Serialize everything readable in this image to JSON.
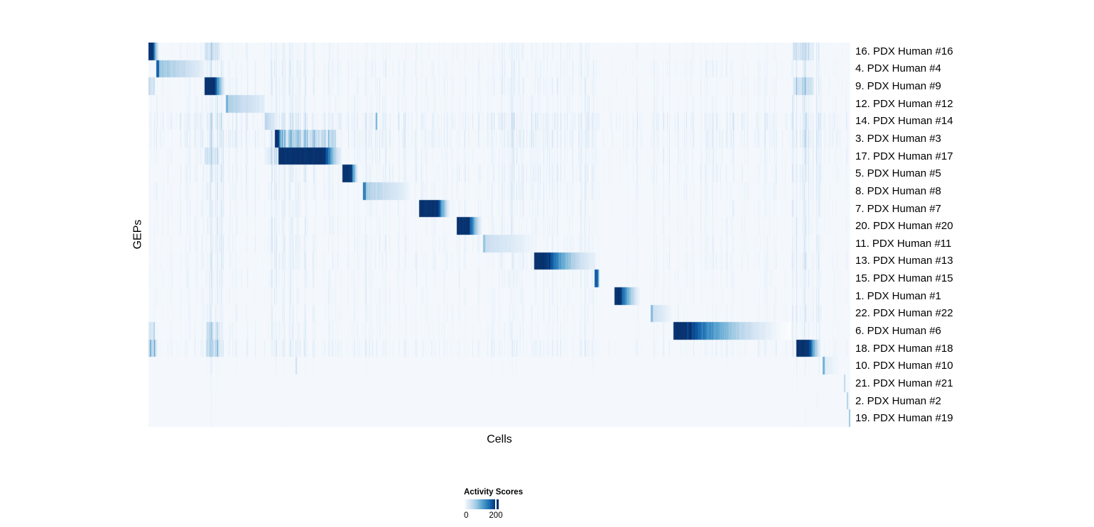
{
  "figure": {
    "xlabel": "Cells",
    "ylabel": "GEPs"
  },
  "legend": {
    "title": "Activity Scores",
    "tick_labels": [
      "0",
      "200"
    ],
    "min": 0,
    "max_tick": 200
  },
  "colors": {
    "page_background": "#ffffff",
    "plot_base": "#f4f8fd",
    "text": "#000000",
    "colormap_stops": [
      [
        0.0,
        "#ffffff"
      ],
      [
        0.13,
        "#deebf7"
      ],
      [
        0.26,
        "#c6dbef"
      ],
      [
        0.39,
        "#9ecae1"
      ],
      [
        0.52,
        "#6baed6"
      ],
      [
        0.65,
        "#4292c6"
      ],
      [
        0.78,
        "#2171b5"
      ],
      [
        0.9,
        "#08519c"
      ],
      [
        1.0,
        "#08306b"
      ]
    ]
  },
  "chart_data": {
    "type": "heatmap",
    "title": "",
    "xlabel": "Cells",
    "ylabel": "GEPs",
    "legend_title": "Activity Scores",
    "colorbar": {
      "min": 0,
      "tick": 200,
      "note": "white-to-dark-blue, saturates above 200"
    },
    "n_rows": 22,
    "rows": [
      {
        "label": "16. PDX Human #16",
        "noise": 0.9,
        "block": {
          "s": 0.0,
          "solid": 0.0055,
          "e": 0.0145,
          "peak": 1.0,
          "tail": 0.04,
          "pow": 1.2
        },
        "bands": [
          [
            0.08,
            0.101,
            0.26
          ],
          [
            0.92,
            0.948,
            0.28
          ]
        ],
        "marks": []
      },
      {
        "label": "4. PDX Human #4",
        "noise": 1.1,
        "block": {
          "s": 0.0115,
          "e": 0.0795,
          "peak": 0.42,
          "tail": 0.07,
          "pow": 0.85,
          "edge": 0.82,
          "edgew": 0.003
        },
        "bands": [],
        "marks": []
      },
      {
        "label": "9. PDX Human #9",
        "noise": 1.1,
        "block": {
          "s": 0.08,
          "solid": 0.094,
          "e": 0.109,
          "peak": 1.0,
          "tail": 0.06,
          "pow": 1.3
        },
        "bands": [
          [
            0.0,
            0.0085,
            0.3
          ],
          [
            0.92,
            0.948,
            0.32
          ]
        ],
        "marks": []
      },
      {
        "label": "12. PDX Human #12",
        "noise": 1.0,
        "block": {
          "s": 0.1105,
          "e": 0.165,
          "peak": 0.34,
          "tail": 0.1,
          "pow": 0.85,
          "edge": 0.5,
          "edgew": 0.002
        },
        "bands": [],
        "marks": []
      },
      {
        "label": "14. PDX Human #14",
        "noise": 1.7,
        "block": {
          "s": 0.166,
          "e": 0.186,
          "peak": 0.3,
          "tail": 0.06,
          "pow": 1.1
        },
        "bands": [],
        "marks": [
          [
            0.3235,
            0.0025,
            0.5
          ]
        ]
      },
      {
        "label": "3. PDX Human #3",
        "noise": 1.6,
        "block": {
          "s": 0.181,
          "solid": 0.1848,
          "e": 0.189,
          "peak": 1.0,
          "tail": 0.28,
          "pow": 1.0
        },
        "bands": [
          [
            0.189,
            0.267,
            0.42
          ]
        ],
        "marks": []
      },
      {
        "label": "17. PDX Human #17",
        "noise": 1.2,
        "block": {
          "s": 0.1862,
          "solid": 0.252,
          "e": 0.2745,
          "peak": 1.0,
          "tail": 0.1,
          "pow": 1.5
        },
        "bands": [
          [
            0.08,
            0.101,
            0.24
          ],
          [
            0.166,
            0.186,
            0.22
          ]
        ],
        "marks": []
      },
      {
        "label": "5. PDX Human #5",
        "noise": 1.2,
        "block": {
          "s": 0.277,
          "solid": 0.288,
          "e": 0.298,
          "peak": 1.0,
          "tail": 0.08,
          "pow": 1.3
        },
        "bands": [],
        "marks": []
      },
      {
        "label": "8. PDX Human #8",
        "noise": 1.1,
        "block": {
          "s": 0.3065,
          "e": 0.3725,
          "peak": 0.36,
          "tail": 0.06,
          "pow": 0.9,
          "edge": 0.75,
          "edgew": 0.0025
        },
        "bands": [],
        "marks": []
      },
      {
        "label": "7. PDX Human #7",
        "noise": 1.0,
        "block": {
          "s": 0.386,
          "solid": 0.412,
          "e": 0.429,
          "peak": 1.0,
          "tail": 0.07,
          "pow": 1.4
        },
        "bands": [],
        "marks": []
      },
      {
        "label": "20. PDX Human #20",
        "noise": 1.0,
        "block": {
          "s": 0.44,
          "solid": 0.4565,
          "e": 0.474,
          "peak": 1.0,
          "tail": 0.08,
          "pow": 1.4
        },
        "bands": [],
        "marks": []
      },
      {
        "label": "11. PDX Human #11",
        "noise": 1.0,
        "block": {
          "s": 0.477,
          "e": 0.545,
          "peak": 0.24,
          "tail": 0.05,
          "pow": 0.85,
          "edge": 0.42,
          "edgew": 0.002
        },
        "bands": [],
        "marks": []
      },
      {
        "label": "13. PDX Human #13",
        "noise": 1.1,
        "block": {
          "s": 0.55,
          "solid": 0.5665,
          "e": 0.636,
          "peak": 1.0,
          "tail": 0.1,
          "pow": 1.7
        },
        "bands": [],
        "marks": []
      },
      {
        "label": "15. PDX Human #15",
        "noise": 1.0,
        "block": {
          "s": 0.6365,
          "solid": 0.6395,
          "e": 0.642,
          "peak": 0.85,
          "tail": 0.1,
          "pow": 1.0
        },
        "bands": [],
        "marks": []
      },
      {
        "label": "1. PDX Human #1",
        "noise": 0.9,
        "block": {
          "s": 0.664,
          "solid": 0.672,
          "e": 0.7,
          "peak": 1.0,
          "tail": 0.07,
          "pow": 1.5
        },
        "bands": [],
        "marks": []
      },
      {
        "label": "22. PDX Human #22",
        "noise": 0.9,
        "block": {
          "s": 0.7165,
          "e": 0.7445,
          "peak": 0.22,
          "tail": 0.05,
          "pow": 0.85,
          "edge": 0.5,
          "edgew": 0.002
        },
        "bands": [],
        "marks": []
      },
      {
        "label": "6. PDX Human #6",
        "noise": 0.9,
        "block": {
          "s": 0.748,
          "solid": 0.767,
          "e": 0.915,
          "peak": 1.0,
          "tail": 0.02,
          "pow": 1.7
        },
        "bands": [
          [
            0.0,
            0.0085,
            0.28
          ],
          [
            0.082,
            0.101,
            0.28
          ]
        ],
        "marks": []
      },
      {
        "label": "18. PDX Human #18",
        "noise": 1.2,
        "block": {
          "s": 0.924,
          "solid": 0.94,
          "e": 0.958,
          "peak": 1.0,
          "tail": 0.05,
          "pow": 1.3
        },
        "bands": [
          [
            0.0,
            0.011,
            0.45
          ],
          [
            0.082,
            0.101,
            0.35
          ]
        ],
        "marks": []
      },
      {
        "label": "10. PDX Human #10",
        "noise": 0.5,
        "block": {
          "s": 0.9615,
          "e": 0.986,
          "peak": 0.12,
          "tail": 0.04,
          "pow": 0.9,
          "edge": 0.5,
          "edgew": 0.0015
        },
        "bands": [],
        "marks": [
          [
            0.21,
            0.002,
            0.22
          ]
        ]
      },
      {
        "label": "21. PDX Human #21",
        "noise": 0.35,
        "block": null,
        "bands": [],
        "marks": [
          [
            0.991,
            0.0025,
            0.28
          ]
        ]
      },
      {
        "label": "2. PDX Human #2",
        "noise": 0.35,
        "block": null,
        "bands": [],
        "marks": [
          [
            0.995,
            0.0025,
            0.33
          ]
        ]
      },
      {
        "label": "19. PDX Human #19",
        "noise": 0.3,
        "block": null,
        "bands": [],
        "marks": [
          [
            0.9985,
            0.002,
            0.38
          ]
        ]
      }
    ],
    "noise_bands": [
      [
        0.0,
        0.011,
        0.45
      ],
      [
        0.011,
        0.08,
        0.5
      ],
      [
        0.08,
        0.108,
        1.0
      ],
      [
        0.108,
        0.166,
        0.55
      ],
      [
        0.166,
        0.186,
        0.8
      ],
      [
        0.186,
        0.267,
        0.7
      ],
      [
        0.267,
        0.306,
        0.45
      ],
      [
        0.306,
        0.385,
        0.55
      ],
      [
        0.385,
        0.438,
        0.5
      ],
      [
        0.438,
        0.476,
        0.5
      ],
      [
        0.476,
        0.545,
        0.6
      ],
      [
        0.545,
        0.636,
        0.6
      ],
      [
        0.636,
        0.662,
        0.3
      ],
      [
        0.662,
        0.701,
        0.45
      ],
      [
        0.701,
        0.716,
        0.25
      ],
      [
        0.716,
        0.746,
        0.5
      ],
      [
        0.746,
        0.916,
        0.45
      ],
      [
        0.916,
        0.958,
        0.9
      ],
      [
        0.958,
        1.0,
        0.35
      ]
    ]
  }
}
